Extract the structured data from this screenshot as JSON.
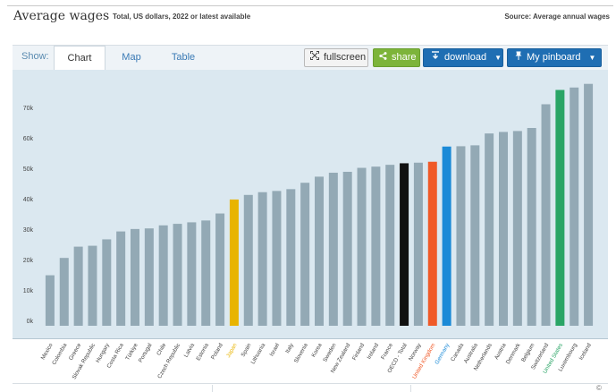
{
  "header": {
    "title": "Average wages",
    "subtitle": "Total, US dollars, 2022 or latest available",
    "source": "Source: Average annual wages"
  },
  "toolbar": {
    "show_label": "Show:",
    "tabs": [
      {
        "label": "Chart",
        "active": true
      },
      {
        "label": "Map",
        "active": false
      },
      {
        "label": "Table",
        "active": false
      }
    ],
    "fullscreen_label": "fullscreen",
    "share_label": "share",
    "download_label": "download",
    "pinboard_label": "My pinboard"
  },
  "colors": {
    "default_bar": "#93a9b5",
    "Japan": "#e8b400",
    "OECD - Total": "#111111",
    "United Kingdom": "#f05a28",
    "Germany": "#1b8ad7",
    "United States": "#2aa566",
    "plot_background": "#dbe8f0",
    "accent_blue": "#1f6eb3",
    "share_green": "#7db43a"
  },
  "chart_data": {
    "type": "bar",
    "title": "",
    "xlabel": "",
    "ylabel": "",
    "ylim": [
      0,
      83000
    ],
    "yticks": [
      0,
      10000,
      20000,
      30000,
      40000,
      50000,
      60000,
      70000
    ],
    "ytick_labels": [
      "0k",
      "10k",
      "20k",
      "30k",
      "40k",
      "50k",
      "60k",
      "70k"
    ],
    "categories": [
      "Mexico",
      "Colombia",
      "Greece",
      "Slovak Republic",
      "Hungary",
      "Costa Rica",
      "Türkiye",
      "Portugal",
      "Chile",
      "Czech Republic",
      "Latvia",
      "Estonia",
      "Poland",
      "Japan",
      "Spain",
      "Lithuania",
      "Israel",
      "Italy",
      "Slovenia",
      "Korea",
      "Sweden",
      "New Zealand",
      "Finland",
      "Ireland",
      "France",
      "OECD - Total",
      "Norway",
      "United Kingdom",
      "Germany",
      "Canada",
      "Australia",
      "Netherlands",
      "Austria",
      "Denmark",
      "Belgium",
      "Switzerland",
      "United States",
      "Luxembourg",
      "Iceland"
    ],
    "values": [
      16600,
      22300,
      26000,
      26300,
      28400,
      31000,
      31800,
      32000,
      33000,
      33500,
      34000,
      34600,
      36900,
      41500,
      43000,
      43900,
      44300,
      44900,
      47000,
      49000,
      50300,
      50600,
      51900,
      52300,
      52900,
      53400,
      53600,
      53900,
      58900,
      59000,
      59300,
      63200,
      63700,
      64000,
      65000,
      72800,
      77500,
      78300,
      79500
    ],
    "highlighted": [
      "Japan",
      "OECD - Total",
      "United Kingdom",
      "Germany",
      "United States"
    ],
    "legend": "none",
    "grid": false
  }
}
